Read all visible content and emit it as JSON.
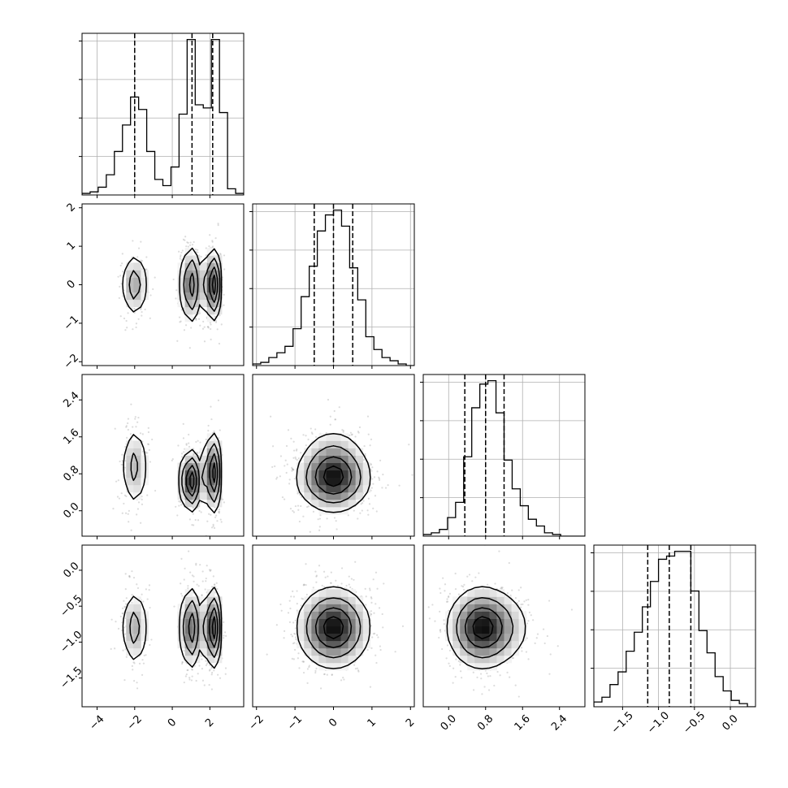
{
  "chart_data": {
    "type": "corner",
    "description_free": true,
    "variables": [
      {
        "range": [
          -4.8,
          3.8
        ],
        "ticks": [
          -4,
          -2,
          0,
          2
        ]
      },
      {
        "range": [
          -2.1,
          2.1
        ],
        "ticks": [
          -2,
          -1,
          0,
          1,
          2
        ]
      },
      {
        "range": [
          -0.55,
          2.95
        ],
        "ticks": [
          0.0,
          0.8,
          1.6,
          2.4
        ],
        "tick_labels": [
          "0.0",
          "0.8",
          "1.6",
          "2.4"
        ]
      },
      {
        "range": [
          -1.9,
          0.35
        ],
        "ticks": [
          -1.5,
          -1.0,
          -0.5,
          0.0
        ],
        "tick_labels": [
          "−1.5",
          "−1.0",
          "−0.5",
          "0.0"
        ]
      }
    ],
    "histograms": [
      {
        "bin_edges": [
          -4.8,
          -4.37,
          -3.94,
          -3.51,
          -3.08,
          -2.65,
          -2.22,
          -1.79,
          -1.36,
          -0.93,
          -0.5,
          -0.07,
          0.36,
          0.79,
          1.22,
          1.65,
          2.08,
          2.51,
          2.94,
          3.37,
          3.8
        ],
        "counts": [
          0.01,
          0.02,
          0.05,
          0.13,
          0.28,
          0.45,
          0.63,
          0.55,
          0.28,
          0.1,
          0.06,
          0.18,
          0.52,
          1.0,
          0.58,
          0.56,
          1.0,
          0.53,
          0.04,
          0.01
        ],
        "quantiles": [
          -2.0,
          1.05,
          2.15
        ]
      },
      {
        "bin_edges": [
          -2.1,
          -1.89,
          -1.68,
          -1.47,
          -1.26,
          -1.05,
          -0.84,
          -0.63,
          -0.42,
          -0.21,
          0.0,
          0.21,
          0.42,
          0.63,
          0.84,
          1.05,
          1.26,
          1.47,
          1.68,
          1.89,
          2.1
        ],
        "counts": [
          0.01,
          0.02,
          0.05,
          0.08,
          0.12,
          0.23,
          0.43,
          0.62,
          0.84,
          0.94,
          0.97,
          0.87,
          0.61,
          0.41,
          0.18,
          0.1,
          0.05,
          0.03,
          0.01,
          0.0
        ],
        "quantiles": [
          -0.5,
          0.0,
          0.5
        ]
      },
      {
        "bin_edges": [
          -0.55,
          -0.375,
          -0.2,
          -0.025,
          0.15,
          0.325,
          0.5,
          0.675,
          0.85,
          1.025,
          1.2,
          1.375,
          1.55,
          1.725,
          1.9,
          2.075,
          2.25,
          2.425,
          2.6,
          2.775,
          2.95
        ],
        "counts": [
          0.01,
          0.02,
          0.04,
          0.11,
          0.2,
          0.47,
          0.76,
          0.9,
          0.92,
          0.73,
          0.45,
          0.28,
          0.18,
          0.1,
          0.06,
          0.02,
          0.01,
          0.0,
          0.0,
          0.0
        ],
        "quantiles": [
          0.35,
          0.8,
          1.2
        ]
      },
      {
        "bin_edges": [
          -1.9,
          -1.7875,
          -1.675,
          -1.5625,
          -1.45,
          -1.3375,
          -1.225,
          -1.1125,
          -1.0,
          -0.8875,
          -0.775,
          -0.6625,
          -0.55,
          -0.4375,
          -0.325,
          -0.2125,
          -0.1,
          0.0125,
          0.125,
          0.2375,
          0.35
        ],
        "counts": [
          0.03,
          0.06,
          0.14,
          0.22,
          0.35,
          0.47,
          0.63,
          0.79,
          0.93,
          0.95,
          0.98,
          0.98,
          0.73,
          0.48,
          0.34,
          0.19,
          0.1,
          0.04,
          0.02,
          0.0
        ],
        "quantiles": [
          -1.15,
          -0.85,
          -0.55
        ]
      }
    ],
    "modes": [
      {
        "mean": [
          -2.0,
          0.0,
          0.95,
          -0.8
        ],
        "sd": [
          0.35,
          0.42,
          0.45,
          0.27
        ],
        "weight": 0.25
      },
      {
        "mean": [
          1.0,
          0.0,
          0.65,
          -0.8
        ],
        "sd": [
          0.28,
          0.5,
          0.32,
          0.28
        ],
        "weight": 0.37
      },
      {
        "mean": [
          2.15,
          0.0,
          0.82,
          -0.8
        ],
        "sd": [
          0.22,
          0.45,
          0.42,
          0.27
        ],
        "weight": 0.38
      }
    ]
  }
}
